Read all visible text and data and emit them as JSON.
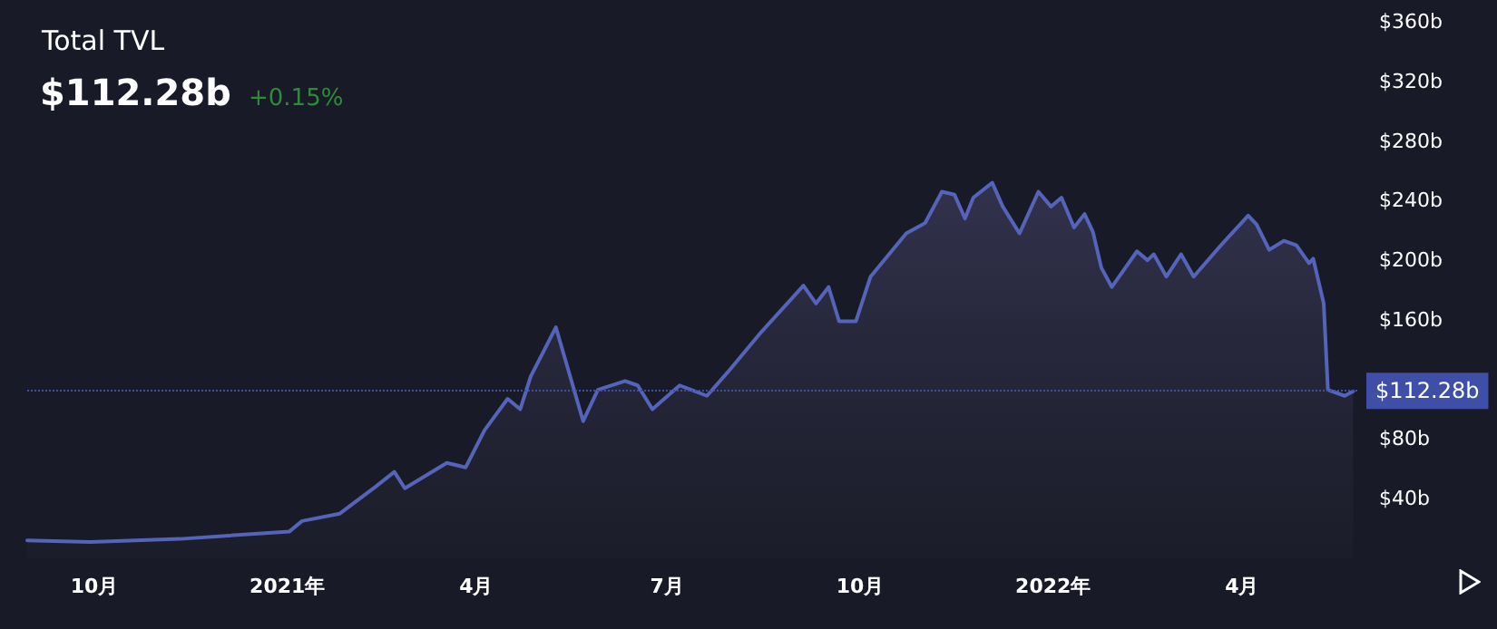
{
  "chart_data": {
    "type": "area",
    "title": "Total TVL",
    "subtitle": "$112.28b",
    "annotations": [
      "+0.15%"
    ],
    "x": [
      "2020-08-30",
      "2020-09-29",
      "2020-11-11",
      "2021-01-02",
      "2021-01-08",
      "2021-01-26",
      "2021-02-12",
      "2021-02-21",
      "2021-02-26",
      "2021-03-18",
      "2021-03-27",
      "2021-04-05",
      "2021-04-16",
      "2021-04-22",
      "2021-04-27",
      "2021-05-09",
      "2021-05-22",
      "2021-05-29",
      "2021-06-11",
      "2021-06-17",
      "2021-06-24",
      "2021-07-07",
      "2021-07-20",
      "2021-07-30",
      "2021-08-15",
      "2021-09-04",
      "2021-09-10",
      "2021-09-16",
      "2021-09-21",
      "2021-09-29",
      "2021-10-06",
      "2021-10-23",
      "2021-11-01",
      "2021-11-09",
      "2021-11-15",
      "2021-11-20",
      "2021-11-24",
      "2021-12-03",
      "2021-12-08",
      "2021-12-16",
      "2021-12-25",
      "2021-12-31",
      "2022-01-05",
      "2022-01-11",
      "2022-01-16",
      "2022-01-20",
      "2022-01-24",
      "2022-01-29",
      "2022-02-10",
      "2022-02-15",
      "2022-02-18",
      "2022-02-24",
      "2022-03-03",
      "2022-03-09",
      "2022-03-22",
      "2022-04-04",
      "2022-04-08",
      "2022-04-14",
      "2022-04-21",
      "2022-04-27",
      "2022-05-03",
      "2022-05-05",
      "2022-05-10",
      "2022-05-12",
      "2022-05-20",
      "2022-05-24"
    ],
    "series": [
      {
        "color": "#5563b8",
        "values": [
          12,
          11,
          13,
          18,
          25,
          30,
          48,
          58,
          47,
          64,
          61,
          86,
          107,
          100,
          122,
          155,
          92,
          113,
          119,
          116,
          100,
          116,
          109,
          125,
          152,
          183,
          171,
          182,
          159,
          159,
          189,
          218,
          225,
          246,
          244,
          228,
          242,
          252,
          236,
          218,
          246,
          236,
          242,
          222,
          231,
          219,
          195,
          182,
          206,
          200,
          204,
          189,
          204,
          189,
          210,
          230,
          224,
          207,
          213,
          210,
          198,
          201,
          171,
          113,
          109,
          112
        ]
      }
    ],
    "xlim": [
      "2020-08-30",
      "2022-05-26"
    ],
    "xticks": [
      {
        "value": "2020-10-01",
        "label": "10月"
      },
      {
        "value": "2021-01-01",
        "label": "2021年"
      },
      {
        "value": "2021-04-01",
        "label": "4月"
      },
      {
        "value": "2021-07-01",
        "label": "7月"
      },
      {
        "value": "2021-10-01",
        "label": "10月"
      },
      {
        "value": "2022-01-01",
        "label": "2022年"
      },
      {
        "value": "2022-04-01",
        "label": "4月"
      }
    ],
    "ylim": [
      0,
      360
    ],
    "yticks": [
      {
        "value": 40,
        "label": "$40b"
      },
      {
        "value": 80,
        "label": "$80b"
      },
      {
        "value": 160,
        "label": "$160b"
      },
      {
        "value": 200,
        "label": "$200b"
      },
      {
        "value": 240,
        "label": "$240b"
      },
      {
        "value": 280,
        "label": "$280b"
      },
      {
        "value": 320,
        "label": "$320b"
      },
      {
        "value": 360,
        "label": "$360b"
      }
    ],
    "ref_lines": [
      {
        "axis": "y",
        "value": 112.28,
        "label": "$112.28b",
        "color": "#3f4fa8",
        "line_style": "dotted"
      }
    ],
    "grid": false,
    "marker": "none",
    "line_style": "solid"
  }
}
